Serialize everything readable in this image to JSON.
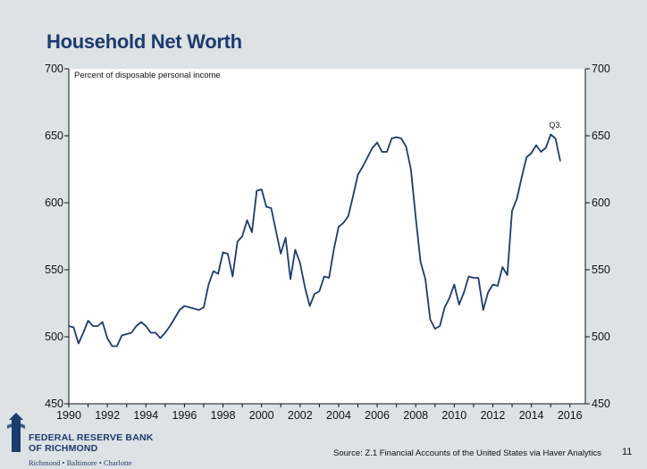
{
  "slide": {
    "title": "Household Net Worth",
    "source": "Source: Z.1 Financial Accounts of the United States via Haver Analytics",
    "page_number": "11"
  },
  "logo": {
    "line1": "FEDERAL RESERVE BANK",
    "line2": "OF RICHMOND",
    "cities": "Richmond • Baltimore • Charlotte"
  },
  "chart_data": {
    "type": "line",
    "title": "",
    "ylabel": "Percent of disposable personal income",
    "xlabel": "",
    "xlim": [
      1990,
      2016.8
    ],
    "ylim": [
      450,
      700
    ],
    "x_ticks": [
      1990,
      1992,
      1994,
      1996,
      1998,
      2000,
      2002,
      2004,
      2006,
      2008,
      2010,
      2012,
      2014,
      2016
    ],
    "y_ticks": [
      450,
      500,
      550,
      600,
      650,
      700
    ],
    "right_axis_ticks": [
      450,
      500,
      550,
      600,
      650,
      700
    ],
    "grid": false,
    "line_color": "#1c3b6e",
    "annotations": [
      {
        "text": "Q3.",
        "x": 2015.25,
        "y": 656
      }
    ],
    "series": [
      {
        "x": [
          1990.0,
          1990.25,
          1990.5,
          1990.75,
          1991.0,
          1991.25,
          1991.5,
          1991.75,
          1992.0,
          1992.25,
          1992.5,
          1992.75,
          1993.0,
          1993.25,
          1993.5,
          1993.75,
          1994.0,
          1994.25,
          1994.5,
          1994.75,
          1995.0,
          1995.25,
          1995.5,
          1995.75,
          1996.0,
          1996.25,
          1996.5,
          1996.75,
          1997.0,
          1997.25,
          1997.5,
          1997.75,
          1998.0,
          1998.25,
          1998.5,
          1998.75,
          1999.0,
          1999.25,
          1999.5,
          1999.75,
          2000.0,
          2000.25,
          2000.5,
          2000.75,
          2001.0,
          2001.25,
          2001.5,
          2001.75,
          2002.0,
          2002.25,
          2002.5,
          2002.75,
          2003.0,
          2003.25,
          2003.5,
          2003.75,
          2004.0,
          2004.25,
          2004.5,
          2004.75,
          2005.0,
          2005.25,
          2005.5,
          2005.75,
          2006.0,
          2006.25,
          2006.5,
          2006.75,
          2007.0,
          2007.25,
          2007.5,
          2007.75,
          2008.0,
          2008.25,
          2008.5,
          2008.75,
          2009.0,
          2009.25,
          2009.5,
          2009.75,
          2010.0,
          2010.25,
          2010.5,
          2010.75,
          2011.0,
          2011.25,
          2011.5,
          2011.75,
          2012.0,
          2012.25,
          2012.5,
          2012.75,
          2013.0,
          2013.25,
          2013.5,
          2013.75,
          2014.0,
          2014.25,
          2014.5,
          2014.75,
          2015.0,
          2015.25,
          2015.5
        ],
        "y": [
          508,
          507,
          495,
          503,
          512,
          508,
          508,
          511,
          499,
          493,
          493,
          501,
          502,
          503,
          508,
          511,
          508,
          503,
          503,
          499,
          503,
          508,
          514,
          520,
          523,
          522,
          521,
          520,
          522,
          539,
          549,
          547,
          563,
          562,
          545,
          571,
          575,
          587,
          578,
          609,
          610,
          597,
          596,
          579,
          562,
          574,
          543,
          565,
          555,
          537,
          523,
          532,
          534,
          545,
          544,
          565,
          582,
          585,
          590,
          605,
          621,
          627,
          634,
          641,
          645,
          638,
          638,
          648,
          649,
          648,
          642,
          625,
          589,
          556,
          543,
          513,
          506,
          508,
          522,
          529,
          539,
          524,
          533,
          545,
          544,
          544,
          520,
          533,
          539,
          538,
          552,
          546,
          594,
          603,
          619,
          634,
          637,
          643,
          638,
          641,
          651,
          648,
          631
        ]
      }
    ]
  }
}
